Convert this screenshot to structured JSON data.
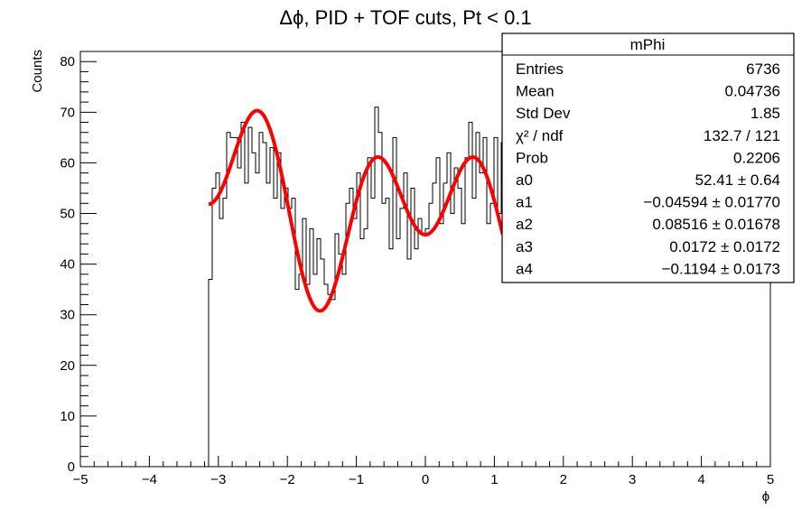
{
  "chart_data": {
    "type": "histogram",
    "title": "Δϕ, PID + TOF cuts, Pt < 0.1",
    "xlabel": "ϕ",
    "ylabel": "Counts",
    "xlim": [
      -5,
      5
    ],
    "ylim": [
      0,
      82
    ],
    "x_ticks": [
      "−5",
      "−4",
      "−3",
      "−2",
      "−1",
      "0",
      "1",
      "2",
      "3",
      "4",
      "5"
    ],
    "y_ticks": [
      "0",
      "10",
      "20",
      "30",
      "40",
      "50",
      "60",
      "70",
      "80"
    ],
    "grid": false,
    "bin_width": 0.0524,
    "bins": [
      {
        "x": -3.1416,
        "y": 37
      },
      {
        "x": -3.0892,
        "y": 55
      },
      {
        "x": -3.0368,
        "y": 58
      },
      {
        "x": -2.9845,
        "y": 49
      },
      {
        "x": -2.9321,
        "y": 53
      },
      {
        "x": -2.8798,
        "y": 66
      },
      {
        "x": -2.8274,
        "y": 65
      },
      {
        "x": -2.7751,
        "y": 65
      },
      {
        "x": -2.7227,
        "y": 59
      },
      {
        "x": -2.6704,
        "y": 68
      },
      {
        "x": -2.618,
        "y": 56
      },
      {
        "x": -2.5656,
        "y": 67
      },
      {
        "x": -2.5133,
        "y": 62
      },
      {
        "x": -2.4609,
        "y": 58
      },
      {
        "x": -2.4086,
        "y": 66
      },
      {
        "x": -2.3562,
        "y": 64
      },
      {
        "x": -2.3038,
        "y": 56
      },
      {
        "x": -2.2515,
        "y": 63
      },
      {
        "x": -2.1991,
        "y": 53
      },
      {
        "x": -2.1468,
        "y": 62
      },
      {
        "x": -2.0944,
        "y": 51
      },
      {
        "x": -2.042,
        "y": 55
      },
      {
        "x": -1.9897,
        "y": 51
      },
      {
        "x": -1.9373,
        "y": 53
      },
      {
        "x": -1.885,
        "y": 35
      },
      {
        "x": -1.8326,
        "y": 38
      },
      {
        "x": -1.7803,
        "y": 49
      },
      {
        "x": -1.7279,
        "y": 36
      },
      {
        "x": -1.6755,
        "y": 47
      },
      {
        "x": -1.6232,
        "y": 38
      },
      {
        "x": -1.5708,
        "y": 45
      },
      {
        "x": -1.5184,
        "y": 41
      },
      {
        "x": -1.4661,
        "y": 36
      },
      {
        "x": -1.4137,
        "y": 34
      },
      {
        "x": -1.3614,
        "y": 33
      },
      {
        "x": -1.309,
        "y": 46
      },
      {
        "x": -1.2566,
        "y": 42
      },
      {
        "x": -1.2043,
        "y": 38
      },
      {
        "x": -1.1519,
        "y": 52
      },
      {
        "x": -1.0996,
        "y": 55
      },
      {
        "x": -1.0472,
        "y": 49
      },
      {
        "x": -0.9948,
        "y": 58
      },
      {
        "x": -0.9425,
        "y": 45
      },
      {
        "x": -0.8901,
        "y": 47
      },
      {
        "x": -0.8378,
        "y": 61
      },
      {
        "x": -0.7854,
        "y": 53
      },
      {
        "x": -0.733,
        "y": 71
      },
      {
        "x": -0.6807,
        "y": 66
      },
      {
        "x": -0.6283,
        "y": 52
      },
      {
        "x": -0.576,
        "y": 53
      },
      {
        "x": -0.5236,
        "y": 43
      },
      {
        "x": -0.4712,
        "y": 65
      },
      {
        "x": -0.4189,
        "y": 45
      },
      {
        "x": -0.3665,
        "y": 51
      },
      {
        "x": -0.3142,
        "y": 58
      },
      {
        "x": -0.2618,
        "y": 41
      },
      {
        "x": -0.2094,
        "y": 55
      },
      {
        "x": -0.1571,
        "y": 43
      },
      {
        "x": -0.1047,
        "y": 49
      },
      {
        "x": -0.0524,
        "y": 46
      },
      {
        "x": 0.0,
        "y": 47
      },
      {
        "x": 0.0524,
        "y": 52
      },
      {
        "x": 0.1047,
        "y": 56
      },
      {
        "x": 0.1571,
        "y": 61
      },
      {
        "x": 0.2094,
        "y": 48
      },
      {
        "x": 0.2618,
        "y": 56
      },
      {
        "x": 0.3142,
        "y": 62
      },
      {
        "x": 0.3665,
        "y": 50
      },
      {
        "x": 0.4189,
        "y": 59
      },
      {
        "x": 0.4712,
        "y": 55
      },
      {
        "x": 0.5236,
        "y": 48
      },
      {
        "x": 0.576,
        "y": 61
      },
      {
        "x": 0.6283,
        "y": 68
      },
      {
        "x": 0.6807,
        "y": 53
      },
      {
        "x": 0.733,
        "y": 66
      },
      {
        "x": 0.7854,
        "y": 58
      },
      {
        "x": 0.8378,
        "y": 65
      },
      {
        "x": 0.8901,
        "y": 48
      },
      {
        "x": 0.9425,
        "y": 52
      },
      {
        "x": 0.9948,
        "y": 65
      },
      {
        "x": 1.0472,
        "y": 50
      },
      {
        "x": 1.0996,
        "y": 64
      },
      {
        "x": 1.1519,
        "y": 59
      },
      {
        "x": 1.2043,
        "y": 71
      }
    ],
    "fit_function": "a0*(1 + 2*a1*cos(phi) + 2*a2*cos(2*phi) + 2*a3*cos(3*phi) + 2*a4*cos(4*phi))",
    "fit_curve_color": "#ff0000",
    "fit_range": [
      -3.1416,
      1.12
    ],
    "stats_box": {
      "name": "mPhi",
      "rows": [
        {
          "label": "Entries",
          "value": "6736"
        },
        {
          "label": "Mean",
          "value": "0.04736"
        },
        {
          "label": "Std Dev",
          "value": "1.85"
        },
        {
          "label": "χ² / ndf",
          "value": "132.7 / 121"
        },
        {
          "label": "Prob",
          "value": "0.2206"
        },
        {
          "label": "a0",
          "value": "52.41 ± 0.64"
        },
        {
          "label": "a1",
          "value": "−0.04594 ± 0.01770"
        },
        {
          "label": "a2",
          "value": "0.08516 ± 0.01678"
        },
        {
          "label": "a3",
          "value": "0.0172 ± 0.0172"
        },
        {
          "label": "a4",
          "value": "−0.1194 ± 0.0173"
        }
      ]
    },
    "fit_params": {
      "a0": 52.41,
      "a1": -0.04594,
      "a2": 0.08516,
      "a3": 0.0172,
      "a4": -0.1194
    }
  }
}
